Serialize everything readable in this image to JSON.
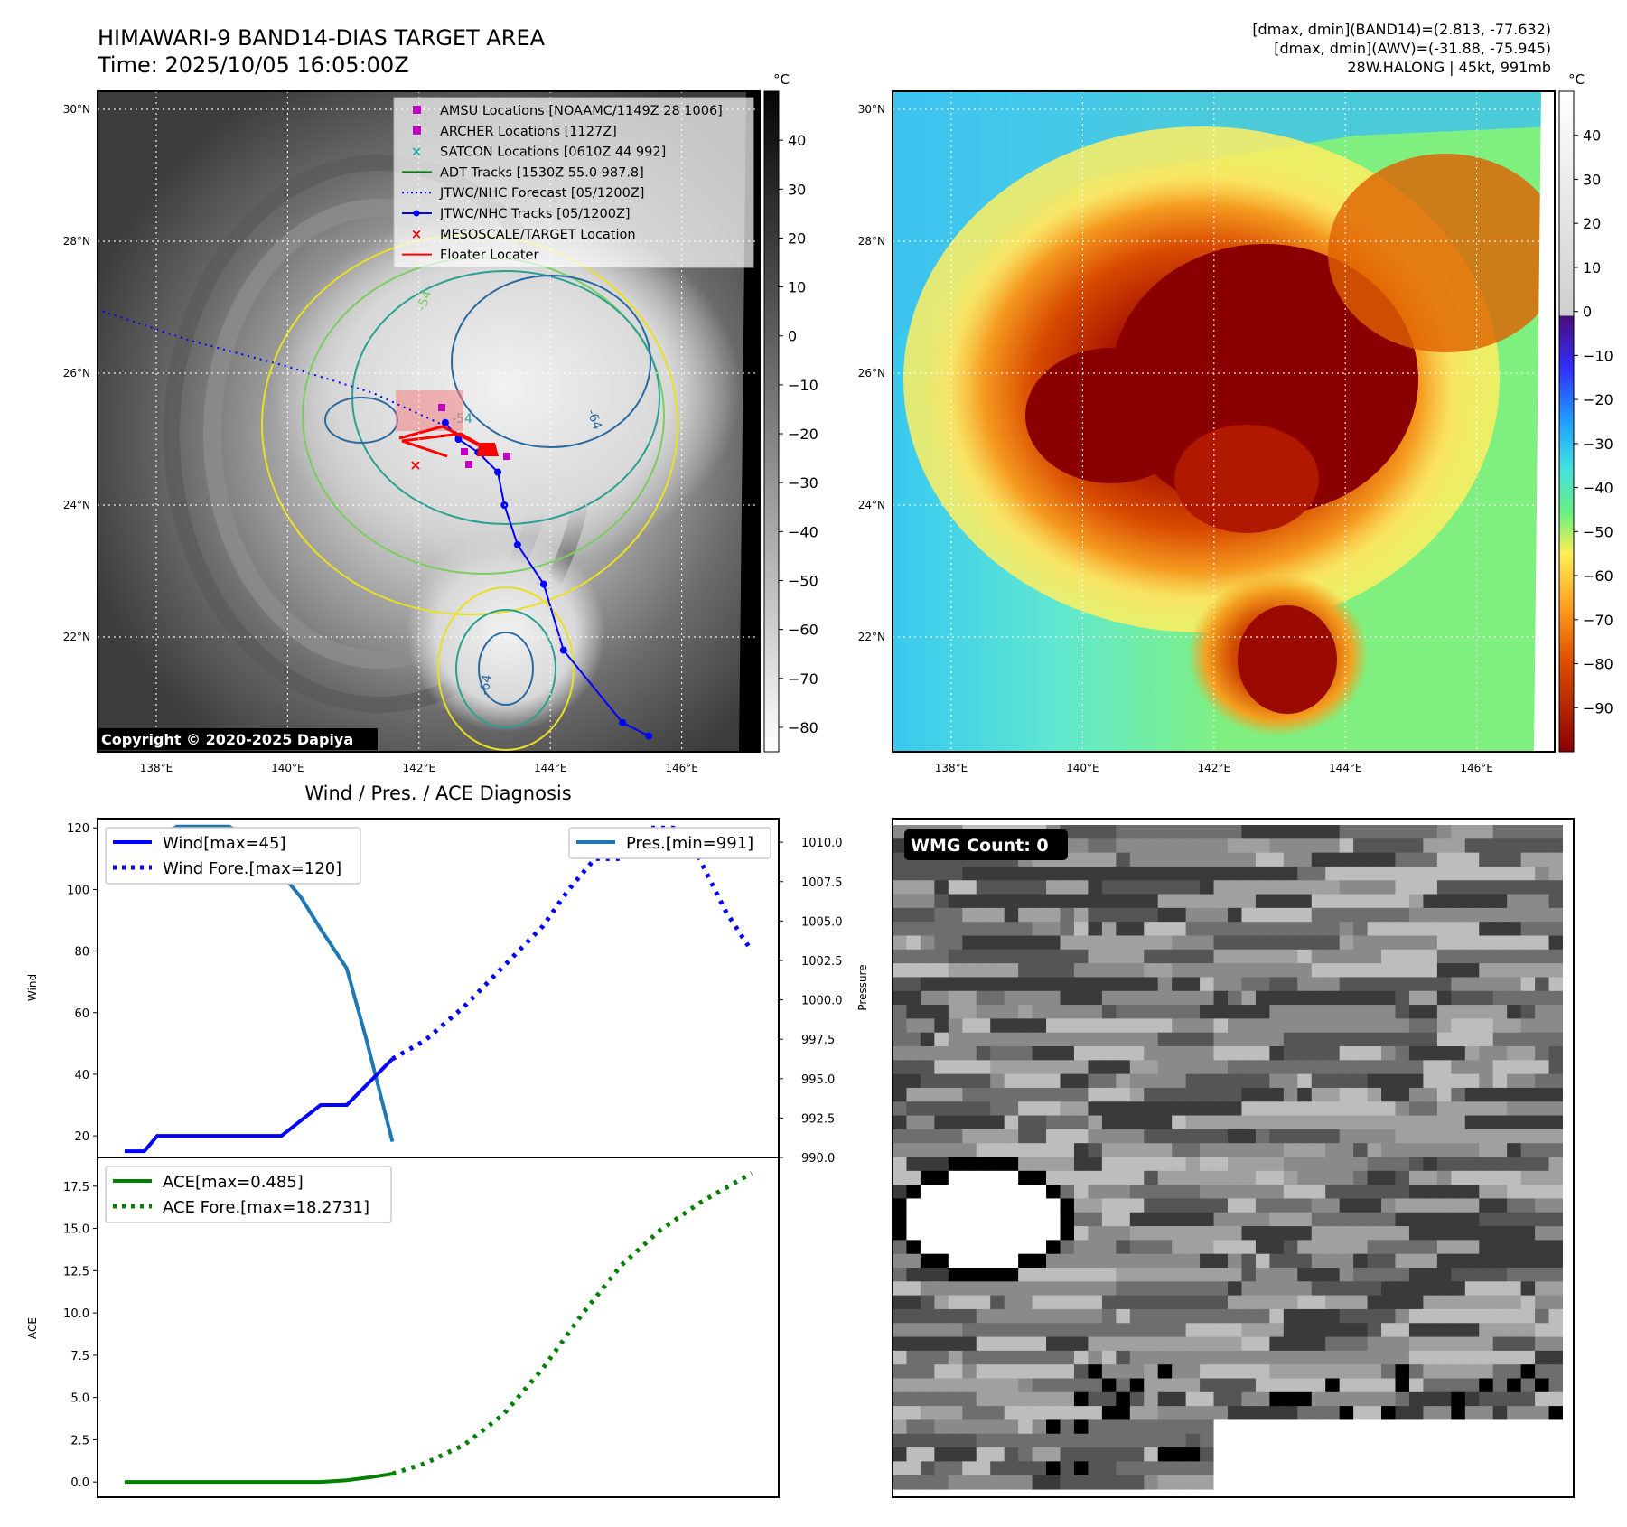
{
  "header": {
    "title_line1": "HIMAWARI-9 BAND14-DIAS TARGET AREA",
    "title_line2": "Time: 2025/10/05 16:05:00Z",
    "info_line1": "[dmax, dmin](BAND14)=(2.813, -77.632)",
    "info_line2": "[dmax, dmin](AWV)=(-31.88, -75.945)",
    "info_line3": "28W.HALONG | 45kt, 991mb"
  },
  "map": {
    "lat_labels": [
      "30°N",
      "28°N",
      "26°N",
      "24°N",
      "22°N"
    ],
    "lat_values": [
      30,
      28,
      26,
      24,
      22
    ],
    "lon_labels": [
      "138°E",
      "140°E",
      "142°E",
      "144°E",
      "146°E"
    ],
    "lon_values": [
      138,
      140,
      142,
      144,
      146
    ],
    "copyright": "Copyright © 2020-2025 Dapiya",
    "legend": [
      {
        "label": "AMSU Locations [NOAAMC/1149Z 28 1006]",
        "marker": "square",
        "color": "#c000c0"
      },
      {
        "label": "ARCHER Locations [1127Z]",
        "marker": "square",
        "color": "#c000c0"
      },
      {
        "label": "SATCON Locations [0610Z 44 992]",
        "marker": "x",
        "color": "#20b2aa"
      },
      {
        "label": "ADT Tracks [1530Z 55.0 987.8]",
        "marker": "line",
        "color": "#008000"
      },
      {
        "label": "JTWC/NHC Forecast [05/1200Z]",
        "marker": "dotted",
        "color": "#0000ff"
      },
      {
        "label": "JTWC/NHC Tracks [05/1200Z]",
        "marker": "line-dot",
        "color": "#0000ff"
      },
      {
        "label": "MESOSCALE/TARGET Location",
        "marker": "x",
        "color": "#ff0000"
      },
      {
        "label": "Floater Locater",
        "marker": "line",
        "color": "#ff0000"
      }
    ],
    "contour_labels": [
      "-64",
      "-64",
      "-64",
      "-54",
      "-54"
    ],
    "track_forecast": [
      [
        137.0,
        27.0
      ],
      [
        138.5,
        26.5
      ],
      [
        140.0,
        26.1
      ],
      [
        141.3,
        25.7
      ],
      [
        142.4,
        25.2
      ],
      [
        142.9,
        24.9
      ],
      [
        143.0,
        24.7
      ]
    ],
    "track_points": [
      [
        142.4,
        25.25
      ],
      [
        142.6,
        25.0
      ],
      [
        142.9,
        24.8
      ],
      [
        143.2,
        24.5
      ],
      [
        143.3,
        24.0
      ],
      [
        143.5,
        23.4
      ],
      [
        143.9,
        22.8
      ],
      [
        144.2,
        21.8
      ],
      [
        145.1,
        20.7
      ],
      [
        145.5,
        20.5
      ]
    ]
  },
  "colorbar_gray": {
    "unit": "°C",
    "ticks": [
      "40",
      "30",
      "20",
      "10",
      "0",
      "−10",
      "−20",
      "−30",
      "−40",
      "−50",
      "−60",
      "−70",
      "−80"
    ],
    "tick_values": [
      40,
      30,
      20,
      10,
      0,
      -10,
      -20,
      -30,
      -40,
      -50,
      -60,
      -70,
      -80
    ],
    "vmin": -85,
    "vmax": 50
  },
  "colorbar_color": {
    "unit": "°C",
    "ticks": [
      "40",
      "30",
      "20",
      "10",
      "0",
      "−10",
      "−20",
      "−30",
      "−40",
      "−50",
      "−60",
      "−70",
      "−80",
      "−90"
    ],
    "tick_values": [
      40,
      30,
      20,
      10,
      0,
      -10,
      -20,
      -30,
      -40,
      -50,
      -60,
      -70,
      -80,
      -90
    ],
    "vmin": -100,
    "vmax": 50
  },
  "diagnosis": {
    "title": "Wind / Pres. / ACE Diagnosis",
    "wind_ylabel": "Wind",
    "pres_ylabel": "Pressure",
    "ace_ylabel": "ACE",
    "wind_legend": "Wind[max=45]",
    "wind_fore_legend": "Wind Fore.[max=120]",
    "pres_legend": "Pres.[min=991]",
    "ace_legend": "ACE[max=0.485]",
    "ace_fore_legend": "ACE Fore.[max=18.2731]",
    "wind_ticks": [
      "20",
      "40",
      "60",
      "80",
      "100",
      "120"
    ],
    "pres_ticks": [
      "990.0",
      "992.5",
      "995.0",
      "997.5",
      "1000.0",
      "1002.5",
      "1005.0",
      "1007.5",
      "1010.0"
    ],
    "ace_ticks": [
      "0.0",
      "2.5",
      "5.0",
      "7.5",
      "10.0",
      "12.5",
      "15.0",
      "17.5"
    ]
  },
  "wmg": {
    "label": "WMG Count: 0"
  },
  "chart_data": [
    {
      "type": "line",
      "title": "Wind / Pres. / ACE Diagnosis",
      "ylabel": "Wind",
      "ylim": [
        13,
        123
      ],
      "x": [
        0,
        1,
        2,
        3,
        4,
        5,
        6,
        7,
        8,
        9,
        10,
        11,
        12,
        13,
        14,
        15,
        16,
        17,
        18,
        19,
        20,
        21,
        22,
        23,
        24,
        25,
        26,
        27,
        28,
        29,
        30,
        31,
        32,
        33,
        34,
        35,
        36,
        37,
        38,
        39,
        40,
        41,
        42,
        43,
        44,
        45,
        46,
        47,
        48
      ],
      "series": [
        {
          "name": "Wind[max=45]",
          "style": "solid",
          "color": "#0000ff",
          "x": [
            0,
            1.5,
            2.5,
            4,
            6,
            8,
            10,
            12,
            13.5,
            15,
            17,
            20.5
          ],
          "values": [
            15,
            15,
            20,
            20,
            20,
            20,
            20,
            20,
            25,
            30,
            30,
            45
          ]
        },
        {
          "name": "Wind Fore.[max=120]",
          "style": "dotted",
          "color": "#0000ff",
          "x": [
            20.5,
            23,
            26,
            29,
            32,
            34,
            36,
            38,
            40,
            42,
            44,
            46,
            48
          ],
          "values": [
            45,
            51,
            62,
            75,
            88,
            100,
            110,
            110,
            120,
            120,
            110,
            93,
            80
          ]
        },
        {
          "name": "Pres.[min=991]",
          "style": "solid",
          "color": "#1f77b4",
          "axis": "right",
          "x": [
            0,
            2,
            4,
            6,
            8,
            10,
            12,
            13.5,
            15,
            17,
            18.5,
            20.5
          ],
          "values": [
            1010.0,
            1010.0,
            1011.0,
            1011.0,
            1011.0,
            1010.0,
            1008.0,
            1006.5,
            1004.5,
            1002.0,
            997.5,
            991.0
          ]
        }
      ],
      "y2label": "Pressure",
      "y2lim": [
        990.0,
        1011.5
      ]
    },
    {
      "type": "line",
      "ylabel": "ACE",
      "ylim": [
        -0.9,
        19.2
      ],
      "series": [
        {
          "name": "ACE[max=0.485]",
          "style": "solid",
          "color": "#008000",
          "x": [
            0,
            5,
            10,
            15,
            17,
            19,
            20.5
          ],
          "values": [
            0.0,
            0.0,
            0.0,
            0.0,
            0.1,
            0.3,
            0.485
          ]
        },
        {
          "name": "ACE Fore.[max=18.2731]",
          "style": "dotted",
          "color": "#008000",
          "x": [
            20.5,
            23,
            26,
            29,
            32,
            35,
            38,
            41,
            44,
            48
          ],
          "values": [
            0.485,
            1.1,
            2.2,
            4.0,
            6.7,
            9.9,
            12.8,
            14.9,
            16.5,
            18.2731
          ]
        }
      ]
    }
  ]
}
